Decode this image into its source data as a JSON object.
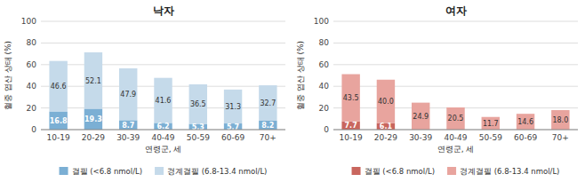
{
  "chart_data": [
    {
      "type": "bar",
      "stacked": true,
      "title": "낙자",
      "categories": [
        "10-19",
        "20-29",
        "30-39",
        "40-49",
        "50-59",
        "60-69",
        "70+"
      ],
      "series": [
        {
          "name": "결필 (<6.8 nmol/L)",
          "color": "#7bafd4",
          "values": [
            16.8,
            19.3,
            8.7,
            6.2,
            5.3,
            5.7,
            8.2
          ],
          "value_labels": [
            "16.8",
            "19.3",
            "8.7",
            "6.2",
            "5.3",
            "5.7",
            "8.2"
          ]
        },
        {
          "name": "경계결필 (6.8-13.4 nmol/L)",
          "color": "#c5daea",
          "values": [
            46.6,
            52.1,
            47.9,
            41.6,
            36.5,
            31.3,
            32.7
          ],
          "value_labels": [
            "46.6",
            "52.1",
            "47.9",
            "41.6",
            "36.5",
            "31.3",
            "32.7"
          ]
        }
      ],
      "xlabel": "연령군, 세",
      "ylabel": "혈중 엽산 상태 (%)",
      "ylim": [
        0,
        100
      ],
      "yticks": [
        0,
        20,
        40,
        60,
        80,
        100
      ],
      "grid": true,
      "data_labels": true,
      "legend": "bottom"
    },
    {
      "type": "bar",
      "stacked": true,
      "title": "여자",
      "categories": [
        "10-19",
        "20-29",
        "30-39",
        "40-49",
        "50-59",
        "60-69",
        "70+"
      ],
      "series": [
        {
          "name": "결필 (<6.8 nmol/L)",
          "color": "#c9665e",
          "values": [
            7.7,
            6.1,
            0.0,
            0.0,
            0.0,
            0.0,
            0.0
          ],
          "value_labels": [
            "7.7",
            "6.1",
            null,
            null,
            null,
            null,
            null
          ]
        },
        {
          "name": "경계결필 (6.8-13.4 nmol/L)",
          "color": "#e8a49e",
          "values": [
            43.5,
            40.0,
            24.9,
            20.5,
            11.7,
            14.6,
            18.0
          ],
          "value_labels": [
            "43.5",
            "40.0",
            "24.9",
            "20.5",
            "11.7",
            "14.6",
            "18.0"
          ]
        }
      ],
      "xlabel": "연령군, 세",
      "ylabel": "혈중 엽산 상태 (%)",
      "ylim": [
        0,
        100
      ],
      "yticks": [
        0,
        20,
        40,
        60,
        80,
        100
      ],
      "grid": true,
      "data_labels": true,
      "legend": "bottom"
    }
  ]
}
